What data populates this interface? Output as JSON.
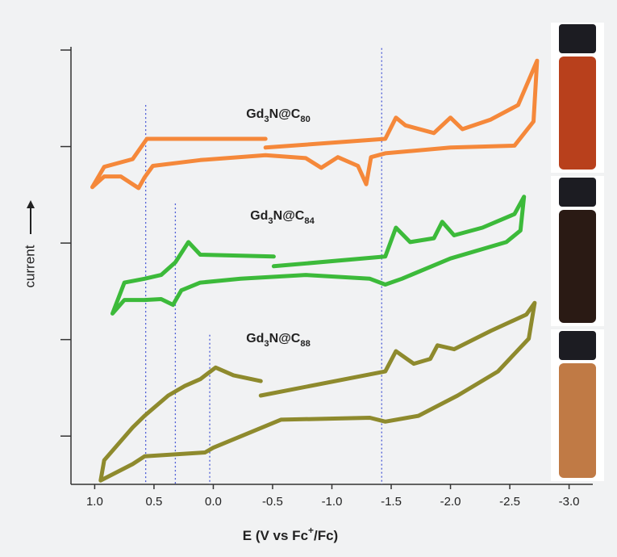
{
  "chart_data": {
    "type": "line",
    "xlabel": "E (V vs Fc+/Fc)",
    "ylabel": "current",
    "xlim": [
      1.2,
      -3.2
    ],
    "xticks": [
      {
        "value": 1.0,
        "label": "1.0"
      },
      0.5,
      {
        "value": 0.0,
        "label": "0.0"
      },
      -0.5,
      {
        "value": -1.0,
        "label": "-1.0"
      },
      -1.5,
      {
        "value": -2.0,
        "label": "-2.0"
      },
      -2.5,
      {
        "value": -3.0,
        "label": "-3.0"
      }
    ],
    "ylim": [
      0,
      4.5
    ],
    "yticks": [
      0.5,
      1.5,
      2.5,
      3.5,
      4.5
    ],
    "reference_lines": [
      {
        "x": 0.57,
        "top": 3.93
      },
      {
        "x": 0.32,
        "top": 2.91
      },
      {
        "x": 0.03,
        "top": 1.55
      },
      {
        "x": -1.42,
        "top": 4.52
      }
    ],
    "series": [
      {
        "name": "Gd3N@C80",
        "color": "#f5883a",
        "x": [
          1.02,
          0.92,
          0.68,
          0.56,
          0.38,
          -0.44,
          null,
          -0.44,
          -1.45,
          -1.54,
          -1.62,
          -1.86,
          -2.0,
          -2.1,
          -2.34,
          -2.57,
          -2.73,
          -2.7,
          -2.54,
          -2.0,
          -1.45,
          -1.33,
          -1.29,
          -1.22,
          -1.05,
          -0.91,
          -0.78,
          -0.44,
          0.11,
          0.51,
          0.58,
          0.63,
          0.78,
          0.92,
          1.02
        ],
        "y": [
          3.08,
          3.29,
          3.37,
          3.58,
          3.58,
          3.58,
          null,
          3.49,
          3.58,
          3.8,
          3.72,
          3.64,
          3.8,
          3.68,
          3.78,
          3.93,
          4.39,
          3.76,
          3.51,
          3.49,
          3.43,
          3.39,
          3.11,
          3.3,
          3.39,
          3.28,
          3.38,
          3.41,
          3.36,
          3.3,
          3.18,
          3.07,
          3.19,
          3.19,
          3.08
        ]
      },
      {
        "name": "Gd3N@C84",
        "color": "#3cba3a",
        "x": [
          0.85,
          0.75,
          0.58,
          0.44,
          0.32,
          0.21,
          0.11,
          -0.51,
          null,
          -0.51,
          -1.45,
          -1.54,
          -1.66,
          -1.86,
          -1.93,
          -2.03,
          -2.27,
          -2.54,
          -2.62,
          -2.59,
          -2.47,
          -2.0,
          -1.59,
          -1.45,
          -1.32,
          -0.78,
          -0.23,
          0.11,
          0.27,
          0.34,
          0.44,
          0.58,
          0.75,
          0.85
        ],
        "y": [
          1.77,
          2.09,
          2.13,
          2.17,
          2.3,
          2.51,
          2.38,
          2.36,
          null,
          2.26,
          2.36,
          2.66,
          2.51,
          2.55,
          2.72,
          2.58,
          2.66,
          2.8,
          2.98,
          2.63,
          2.51,
          2.34,
          2.13,
          2.07,
          2.13,
          2.17,
          2.13,
          2.09,
          2.01,
          1.86,
          1.92,
          1.91,
          1.91,
          1.77
        ]
      },
      {
        "name": "Gd3N@C88",
        "color": "#8e8a2d",
        "x": [
          0.95,
          0.92,
          0.68,
          0.58,
          0.38,
          0.24,
          0.11,
          -0.02,
          -0.17,
          -0.4,
          null,
          -0.4,
          -1.45,
          -1.54,
          -1.69,
          -1.83,
          -1.89,
          -2.03,
          -2.34,
          -2.64,
          -2.71,
          -2.66,
          -2.4,
          -2.06,
          -1.73,
          -1.45,
          -1.32,
          -0.57,
          0.0,
          0.07,
          0.58,
          0.68,
          0.95
        ],
        "y": [
          0.04,
          0.25,
          0.59,
          0.71,
          0.92,
          1.02,
          1.09,
          1.21,
          1.13,
          1.07,
          null,
          0.92,
          1.17,
          1.38,
          1.25,
          1.3,
          1.44,
          1.4,
          1.59,
          1.76,
          1.88,
          1.51,
          1.17,
          0.92,
          0.71,
          0.65,
          0.69,
          0.67,
          0.38,
          0.33,
          0.29,
          0.21,
          0.04
        ]
      }
    ]
  }
}
